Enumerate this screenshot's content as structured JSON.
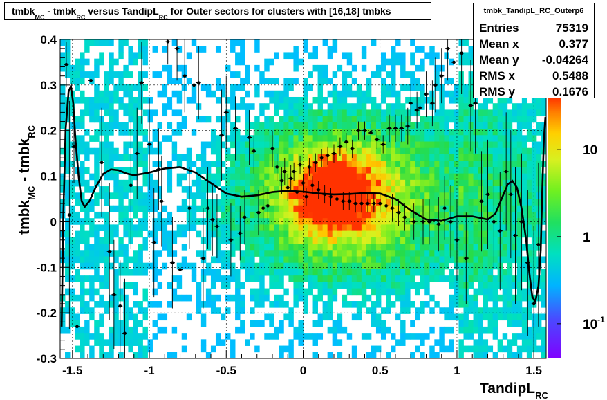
{
  "title": {
    "parts": [
      {
        "t": "tmbk",
        "s": "main"
      },
      {
        "t": "MC",
        "s": "sub"
      },
      {
        "t": " - tmbk",
        "s": "main"
      },
      {
        "t": "RC",
        "s": "sub"
      },
      {
        "t": " versus TandipL",
        "s": "main"
      },
      {
        "t": "RC",
        "s": "sub"
      },
      {
        "t": " for Outer sectors for clusters with [16,18] tmbks",
        "s": "main"
      }
    ]
  },
  "stats": {
    "name": "tmbk_TandipL_RC_Outerp6",
    "rows": [
      {
        "label": "Entries",
        "value": "75319"
      },
      {
        "label": "Mean x",
        "value": "0.377"
      },
      {
        "label": "Mean y",
        "value": "-0.04264"
      },
      {
        "label": "RMS x",
        "value": "0.5488"
      },
      {
        "label": "RMS y",
        "value": "0.1676"
      }
    ]
  },
  "chart_data": {
    "type": "heatmap",
    "xlabel": {
      "main": "TandipL",
      "sub": "RC"
    },
    "ylabel": {
      "main1": "tmbk",
      "sub1": "MC",
      "main2": " - tmbk",
      "sub2": "RC"
    },
    "xlim": [
      -1.58,
      1.58
    ],
    "ylim": [
      -0.3,
      0.4
    ],
    "xticks": [
      {
        "v": -1.5,
        "label": "-1.5"
      },
      {
        "v": -1,
        "label": "-1"
      },
      {
        "v": -0.5,
        "label": "-0.5"
      },
      {
        "v": 0,
        "label": "0"
      },
      {
        "v": 0.5,
        "label": "0.5"
      },
      {
        "v": 1,
        "label": "1"
      },
      {
        "v": 1.5,
        "label": "1.5"
      }
    ],
    "yticks": [
      {
        "v": -0.3,
        "label": "-0.3"
      },
      {
        "v": -0.2,
        "label": "-0.2"
      },
      {
        "v": -0.1,
        "label": "-0.1"
      },
      {
        "v": 0,
        "label": "0"
      },
      {
        "v": 0.1,
        "label": "0.1"
      },
      {
        "v": 0.2,
        "label": "0.2"
      },
      {
        "v": 0.3,
        "label": "0.3"
      },
      {
        "v": 0.4,
        "label": "0.4"
      }
    ],
    "zscale": "log",
    "zlim": [
      0.04,
      40
    ],
    "zticks": [
      {
        "v": 10,
        "label": "10",
        "exp": ""
      },
      {
        "v": 1,
        "label": "1",
        "exp": ""
      },
      {
        "v": 0.1,
        "label": "10",
        "exp": "-1"
      }
    ],
    "grid": true,
    "profile_points": [
      [
        -1.54,
        0.345,
        0.05
      ],
      [
        -1.52,
        0.015,
        0.25
      ],
      [
        -1.49,
        0.165,
        0.08
      ],
      [
        -1.47,
        -0.23,
        0.22
      ],
      [
        -1.38,
        0.31,
        0.06
      ],
      [
        -1.31,
        0.13,
        0.12
      ],
      [
        -1.26,
        -0.065,
        0.15
      ],
      [
        -1.23,
        -0.16,
        0.12
      ],
      [
        -1.19,
        -0.185,
        0.1
      ],
      [
        -1.16,
        -0.245,
        0.12
      ],
      [
        -1.12,
        0.08,
        0.14
      ],
      [
        -1.08,
        0.15,
        0.1
      ],
      [
        -1.05,
        0.305,
        0.09
      ],
      [
        -1.0,
        0.17,
        0.1
      ],
      [
        -0.97,
        -0.045,
        0.12
      ],
      [
        -0.94,
        0.115,
        0.09
      ],
      [
        -0.92,
        0.045,
        0.1
      ],
      [
        -0.88,
        0.395,
        0.05
      ],
      [
        -0.85,
        -0.09,
        0.1
      ],
      [
        -0.82,
        0.38,
        0.07
      ],
      [
        -0.8,
        -0.105,
        0.12
      ],
      [
        -0.77,
        0.32,
        0.08
      ],
      [
        -0.74,
        0.03,
        0.09
      ],
      [
        -0.71,
        0.3,
        0.09
      ],
      [
        -0.68,
        0.305,
        0.08
      ],
      [
        -0.65,
        -0.08,
        0.11
      ],
      [
        -0.62,
        0.03,
        0.09
      ],
      [
        -0.59,
        0.005,
        0.08
      ],
      [
        -0.56,
        -0.01,
        0.07
      ],
      [
        -0.53,
        0.19,
        0.1
      ],
      [
        -0.5,
        0.24,
        0.08
      ],
      [
        -0.47,
        -0.04,
        0.08
      ],
      [
        -0.44,
        0.205,
        0.07
      ],
      [
        -0.41,
        -0.025,
        0.06
      ],
      [
        -0.38,
        0.01,
        0.06
      ],
      [
        -0.35,
        0.185,
        0.06
      ],
      [
        -0.32,
        0.155,
        0.05
      ],
      [
        -0.29,
        0.02,
        0.05
      ],
      [
        -0.26,
        0.03,
        0.05
      ],
      [
        -0.23,
        0.035,
        0.04
      ],
      [
        -0.2,
        0.16,
        0.04
      ],
      [
        -0.17,
        0.12,
        0.03
      ],
      [
        -0.14,
        0.09,
        0.03
      ],
      [
        -0.12,
        0.11,
        0.03
      ],
      [
        -0.1,
        0.075,
        0.03
      ],
      [
        -0.08,
        0.095,
        0.03
      ],
      [
        -0.06,
        0.11,
        0.02
      ],
      [
        -0.04,
        0.065,
        0.02
      ],
      [
        -0.02,
        0.125,
        0.02
      ],
      [
        0.0,
        0.085,
        0.02
      ],
      [
        0.02,
        0.055,
        0.02
      ],
      [
        0.04,
        0.12,
        0.02
      ],
      [
        0.06,
        0.08,
        0.02
      ],
      [
        0.08,
        0.13,
        0.02
      ],
      [
        0.1,
        0.07,
        0.02
      ],
      [
        0.12,
        0.14,
        0.02
      ],
      [
        0.14,
        0.06,
        0.02
      ],
      [
        0.16,
        0.145,
        0.02
      ],
      [
        0.18,
        0.055,
        0.02
      ],
      [
        0.2,
        0.15,
        0.02
      ],
      [
        0.22,
        0.05,
        0.02
      ],
      [
        0.24,
        0.165,
        0.02
      ],
      [
        0.26,
        0.045,
        0.02
      ],
      [
        0.28,
        0.175,
        0.02
      ],
      [
        0.3,
        0.045,
        0.02
      ],
      [
        0.32,
        0.16,
        0.02
      ],
      [
        0.34,
        0.04,
        0.02
      ],
      [
        0.36,
        0.2,
        0.02
      ],
      [
        0.38,
        0.04,
        0.02
      ],
      [
        0.4,
        0.2,
        0.02
      ],
      [
        0.42,
        0.04,
        0.02
      ],
      [
        0.44,
        0.195,
        0.02
      ],
      [
        0.46,
        0.04,
        0.02
      ],
      [
        0.48,
        0.18,
        0.02
      ],
      [
        0.5,
        0.04,
        0.02
      ],
      [
        0.52,
        0.17,
        0.02
      ],
      [
        0.54,
        0.035,
        0.02
      ],
      [
        0.56,
        0.205,
        0.03
      ],
      [
        0.58,
        0.03,
        0.03
      ],
      [
        0.6,
        0.205,
        0.03
      ],
      [
        0.62,
        0.02,
        0.03
      ],
      [
        0.64,
        0.205,
        0.03
      ],
      [
        0.66,
        0.01,
        0.03
      ],
      [
        0.68,
        0.21,
        0.04
      ],
      [
        0.7,
        0.26,
        0.04
      ],
      [
        0.72,
        0.0,
        0.04
      ],
      [
        0.74,
        0.245,
        0.04
      ],
      [
        0.76,
        0.25,
        0.04
      ],
      [
        0.78,
        0.0,
        0.05
      ],
      [
        0.8,
        0.28,
        0.05
      ],
      [
        0.82,
        0.0,
        0.05
      ],
      [
        0.84,
        0.26,
        0.05
      ],
      [
        0.86,
        0.3,
        0.06
      ],
      [
        0.88,
        -0.005,
        0.06
      ],
      [
        0.9,
        0.32,
        0.06
      ],
      [
        0.92,
        0.03,
        0.07
      ],
      [
        0.94,
        0.38,
        0.07
      ],
      [
        0.96,
        0.0,
        0.08
      ],
      [
        0.98,
        0.35,
        0.08
      ],
      [
        1.0,
        -0.04,
        0.09
      ],
      [
        1.03,
        0.37,
        0.09
      ],
      [
        1.06,
        -0.08,
        0.1
      ],
      [
        1.09,
        0.255,
        0.1
      ],
      [
        1.12,
        0.26,
        0.11
      ],
      [
        1.16,
        0.045,
        0.11
      ],
      [
        1.2,
        0.06,
        0.12
      ],
      [
        1.24,
        0.0,
        0.12
      ],
      [
        1.28,
        -0.02,
        0.13
      ],
      [
        1.32,
        0.11,
        0.13
      ],
      [
        1.35,
        0.06,
        0.14
      ],
      [
        1.38,
        -0.03,
        0.15
      ],
      [
        1.42,
        0.0,
        0.15
      ],
      [
        1.46,
        -0.09,
        0.16
      ],
      [
        1.5,
        -0.18,
        0.17
      ],
      [
        1.53,
        -0.05,
        0.18
      ]
    ],
    "fit_curve": [
      [
        -1.57,
        -0.23
      ],
      [
        -1.56,
        0.0
      ],
      [
        -1.545,
        0.2
      ],
      [
        -1.525,
        0.285
      ],
      [
        -1.51,
        0.298
      ],
      [
        -1.495,
        0.26
      ],
      [
        -1.48,
        0.18
      ],
      [
        -1.46,
        0.1
      ],
      [
        -1.44,
        0.045
      ],
      [
        -1.42,
        0.033
      ],
      [
        -1.39,
        0.045
      ],
      [
        -1.35,
        0.075
      ],
      [
        -1.3,
        0.105
      ],
      [
        -1.25,
        0.115
      ],
      [
        -1.2,
        0.113
      ],
      [
        -1.15,
        0.106
      ],
      [
        -1.1,
        0.102
      ],
      [
        -1.0,
        0.108
      ],
      [
        -0.9,
        0.117
      ],
      [
        -0.8,
        0.12
      ],
      [
        -0.7,
        0.108
      ],
      [
        -0.6,
        0.085
      ],
      [
        -0.5,
        0.062
      ],
      [
        -0.4,
        0.055
      ],
      [
        -0.3,
        0.058
      ],
      [
        -0.2,
        0.065
      ],
      [
        -0.1,
        0.068
      ],
      [
        0.0,
        0.066
      ],
      [
        0.1,
        0.062
      ],
      [
        0.2,
        0.06
      ],
      [
        0.3,
        0.061
      ],
      [
        0.4,
        0.063
      ],
      [
        0.5,
        0.062
      ],
      [
        0.6,
        0.05
      ],
      [
        0.7,
        0.025
      ],
      [
        0.8,
        0.005
      ],
      [
        0.9,
        0.002
      ],
      [
        1.0,
        0.012
      ],
      [
        1.1,
        0.012
      ],
      [
        1.2,
        0.005
      ],
      [
        1.25,
        0.018
      ],
      [
        1.3,
        0.058
      ],
      [
        1.33,
        0.082
      ],
      [
        1.36,
        0.09
      ],
      [
        1.39,
        0.075
      ],
      [
        1.42,
        0.03
      ],
      [
        1.45,
        -0.04
      ],
      [
        1.47,
        -0.11
      ],
      [
        1.49,
        -0.165
      ],
      [
        1.51,
        -0.175
      ],
      [
        1.53,
        -0.14
      ],
      [
        1.545,
        -0.06
      ],
      [
        1.555,
        0.07
      ],
      [
        1.565,
        0.18
      ],
      [
        1.575,
        0.23
      ]
    ]
  }
}
